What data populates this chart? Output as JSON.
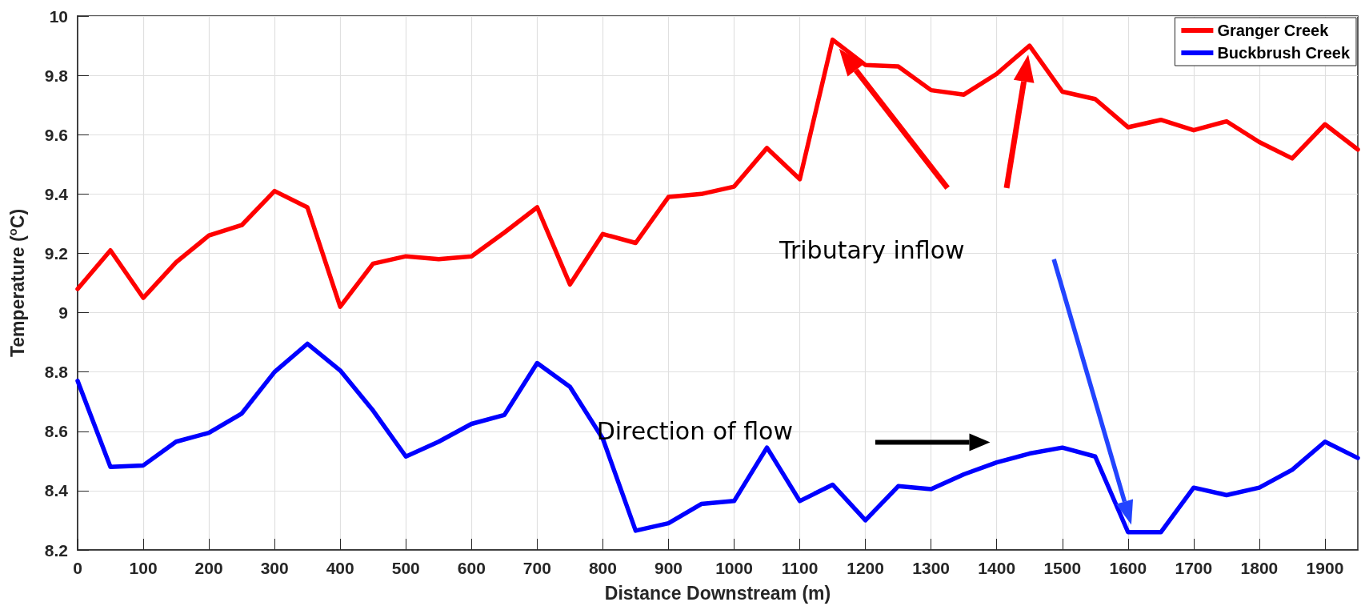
{
  "chart_data": {
    "type": "line",
    "xlabel": "Distance Downstream (m)",
    "ylabel": "Temperature ($^{o}$C)",
    "x": [
      0,
      50,
      100,
      150,
      200,
      250,
      300,
      350,
      400,
      450,
      500,
      550,
      600,
      650,
      700,
      750,
      800,
      850,
      900,
      950,
      1000,
      1050,
      1100,
      1150,
      1200,
      1250,
      1300,
      1350,
      1400,
      1450,
      1500,
      1550,
      1600,
      1650,
      1700,
      1750,
      1800,
      1850,
      1900,
      1950
    ],
    "series": [
      {
        "name": "Granger Creek",
        "color": "#ff0000",
        "values": [
          9.08,
          9.21,
          9.05,
          9.17,
          9.26,
          9.295,
          9.41,
          9.355,
          9.02,
          9.165,
          9.19,
          9.18,
          9.19,
          9.27,
          9.355,
          9.095,
          9.265,
          9.235,
          9.39,
          9.4,
          9.425,
          9.555,
          9.45,
          9.92,
          9.835,
          9.83,
          9.75,
          9.735,
          9.805,
          9.9,
          9.745,
          9.72,
          9.625,
          9.65,
          9.615,
          9.645,
          9.575,
          9.52,
          9.635,
          9.55
        ]
      },
      {
        "name": "Buckbrush Creek",
        "color": "#0000ff",
        "values": [
          8.77,
          8.48,
          8.485,
          8.565,
          8.595,
          8.66,
          8.8,
          8.895,
          8.805,
          8.67,
          8.515,
          8.565,
          8.625,
          8.655,
          8.83,
          8.75,
          8.575,
          8.265,
          8.29,
          8.355,
          8.365,
          8.545,
          8.365,
          8.42,
          8.3,
          8.415,
          8.405,
          8.455,
          8.495,
          8.525,
          8.545,
          8.515,
          8.26,
          8.26,
          8.41,
          8.385,
          8.41,
          8.47,
          8.565,
          8.51
        ]
      }
    ],
    "xlim": [
      0,
      1950
    ],
    "xticks": [
      0,
      100,
      200,
      300,
      400,
      500,
      600,
      700,
      800,
      900,
      1000,
      1100,
      1200,
      1300,
      1400,
      1500,
      1600,
      1700,
      1800,
      1900
    ],
    "ylim": [
      8.2,
      10
    ],
    "yticks": [
      8.2,
      8.4,
      8.6,
      8.8,
      9,
      9.2,
      9.4,
      9.6,
      9.8,
      10
    ],
    "grid": true,
    "legend": "top right",
    "marker": "none",
    "line_style": "solid",
    "annotations": [
      "Tributary inflow",
      "Direction of flow"
    ]
  }
}
